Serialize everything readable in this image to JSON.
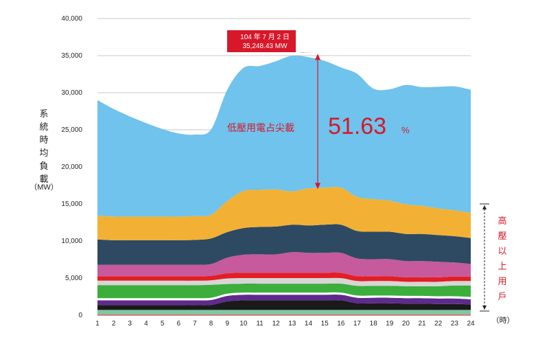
{
  "chart_data": {
    "type": "area",
    "stacked": true,
    "x": [
      1,
      2,
      3,
      4,
      5,
      6,
      7,
      8,
      9,
      10,
      11,
      12,
      13,
      14,
      15,
      16,
      17,
      18,
      19,
      20,
      21,
      22,
      23,
      24
    ],
    "x_unit": "（時）",
    "ylabel": "系統時均負載",
    "ylabel_unit": "（MW）",
    "ylim": [
      0,
      40000
    ],
    "yticks": [
      0,
      5000,
      10000,
      15000,
      20000,
      25000,
      30000,
      35000,
      40000
    ],
    "ytick_labels": [
      "0",
      "5,000",
      "10,000",
      "15,000",
      "20,000",
      "25,000",
      "30,000",
      "35,000",
      "40,000"
    ],
    "grid": true,
    "series": [
      {
        "color": "#7fc8a0",
        "values": [
          700,
          700,
          700,
          700,
          700,
          700,
          700,
          700,
          700,
          700,
          700,
          700,
          700,
          700,
          700,
          700,
          700,
          700,
          700,
          700,
          700,
          700,
          700,
          700
        ]
      },
      {
        "color": "#1a1a1a",
        "values": [
          650,
          650,
          650,
          650,
          650,
          650,
          650,
          680,
          1150,
          1300,
          1300,
          1300,
          1300,
          1300,
          1300,
          1300,
          900,
          900,
          900,
          850,
          850,
          800,
          800,
          750
        ]
      },
      {
        "color": "#5e2b8c",
        "values": [
          650,
          650,
          650,
          650,
          650,
          650,
          650,
          670,
          750,
          750,
          750,
          750,
          750,
          750,
          750,
          750,
          750,
          750,
          750,
          750,
          750,
          750,
          750,
          700
        ]
      },
      {
        "color": "#ffffff",
        "values": [
          300,
          300,
          300,
          300,
          300,
          300,
          300,
          300,
          300,
          300,
          300,
          300,
          300,
          300,
          300,
          300,
          300,
          300,
          300,
          300,
          300,
          300,
          300,
          300
        ]
      },
      {
        "color": "#3cae3c",
        "values": [
          1750,
          1750,
          1750,
          1750,
          1750,
          1750,
          1750,
          1750,
          1300,
          1200,
          1200,
          1200,
          1200,
          1200,
          1200,
          1200,
          1300,
          1300,
          1300,
          1300,
          1300,
          1350,
          1450,
          1550
        ]
      },
      {
        "color": "#d6d6d6",
        "values": [
          600,
          600,
          600,
          600,
          600,
          600,
          600,
          600,
          750,
          750,
          750,
          750,
          750,
          750,
          750,
          750,
          650,
          650,
          650,
          600,
          600,
          600,
          600,
          600
        ]
      },
      {
        "color": "#e31e24",
        "values": [
          600,
          600,
          600,
          600,
          600,
          600,
          600,
          600,
          700,
          700,
          700,
          700,
          700,
          700,
          700,
          700,
          650,
          650,
          650,
          600,
          600,
          600,
          600,
          600
        ]
      },
      {
        "color": "#c65a9c",
        "values": [
          1550,
          1550,
          1550,
          1550,
          1550,
          1550,
          1550,
          1600,
          2100,
          2450,
          2500,
          2500,
          2800,
          2700,
          2700,
          2700,
          2400,
          2300,
          2300,
          2200,
          2200,
          2100,
          1900,
          1700
        ]
      },
      {
        "color": "#2e4a62",
        "values": [
          3400,
          3300,
          3300,
          3300,
          3300,
          3300,
          3350,
          3450,
          3450,
          3600,
          3700,
          3750,
          3700,
          3700,
          3800,
          3800,
          3700,
          3700,
          3700,
          3650,
          3650,
          3600,
          3550,
          3500
        ]
      },
      {
        "color": "#f2b134",
        "values": [
          3200,
          3200,
          3200,
          3200,
          3200,
          3200,
          3200,
          3200,
          4200,
          5000,
          5000,
          5000,
          4500,
          5000,
          5000,
          5000,
          4600,
          4400,
          4200,
          4000,
          3800,
          3600,
          3500,
          3400
        ]
      },
      {
        "color": "#6fc3ec",
        "values": [
          15600,
          14500,
          13500,
          12600,
          11800,
          11200,
          11000,
          11500,
          15000,
          16600,
          16700,
          17300,
          18300,
          17700,
          17100,
          16200,
          16600,
          14900,
          15000,
          16100,
          16000,
          16400,
          16700,
          16600
        ]
      }
    ],
    "annotation": {
      "callout_line1": "104 年 7 月 2 日",
      "callout_line2": "35,248.43 MW",
      "peak_label": "低壓用電占尖載",
      "peak_pct": "51.63",
      "peak_pct_sign": "%",
      "arrow_top": 35248,
      "arrow_bottom": 17000,
      "arrow_x": 14.5,
      "bracket_label": "高壓以上用戶",
      "bracket_top": 15000,
      "bracket_bottom": 0,
      "color": "#d7182a"
    }
  }
}
